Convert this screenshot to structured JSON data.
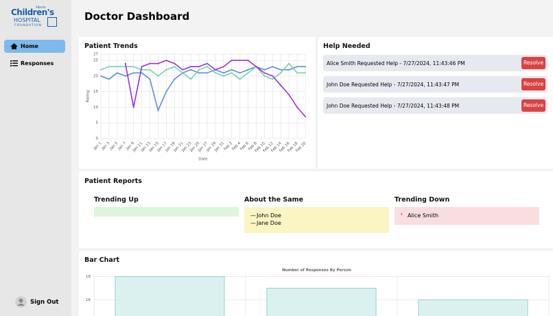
{
  "logo": {
    "small": "Alberta",
    "line1": "Children's",
    "line2": "HOSPITAL",
    "line3": "FOUNDATION"
  },
  "nav": [
    "Home",
    "Responses"
  ],
  "sign_out": "Sign Out",
  "header": {
    "title": "Doctor Dashboard"
  },
  "patient_trends": {
    "type": "line",
    "title": "Patient Trends",
    "xlabel": "Date",
    "ylabel": "Rating",
    "categories": [
      "Jan 1",
      "Jan 3",
      "Jan 5",
      "Jan 7",
      "Jan 9",
      "Jan 11",
      "Jan 13",
      "Jan 15",
      "Jan 17",
      "Jan 19",
      "Jan 21",
      "Jan 23",
      "Jan 25",
      "Jan 27",
      "Jan 29",
      "Jan 31",
      "Feb 2",
      "Feb 4",
      "Feb 6",
      "Feb 8",
      "Feb 10",
      "Feb 12",
      "Feb 14",
      "Feb 16",
      "Feb 18",
      "Feb 20"
    ],
    "series": [
      {
        "color": "#5b8fd6",
        "values": [
          20,
          19,
          21,
          20,
          21,
          21,
          19,
          9,
          15,
          19,
          21,
          22,
          21,
          21,
          22,
          21,
          22,
          21,
          22,
          23,
          22,
          23,
          22,
          22,
          23,
          23
        ]
      },
      {
        "color": "#6fd3b2",
        "values": [
          22,
          23,
          23,
          23,
          23,
          22,
          22,
          20,
          22,
          23,
          21,
          19,
          22,
          23,
          21,
          20,
          21,
          19,
          21,
          23,
          20,
          19,
          21,
          24,
          21,
          21
        ]
      },
      {
        "color": "#9a30d8",
        "values": [
          null,
          null,
          null,
          24,
          10,
          23,
          24,
          24,
          25,
          24,
          22,
          23,
          23,
          24,
          22,
          23,
          25,
          25,
          25,
          23,
          21,
          20,
          17,
          14,
          10,
          7
        ]
      }
    ],
    "ylim": [
      0,
      27
    ],
    "yticks": [
      0,
      5,
      10,
      15,
      20,
      25,
      27
    ],
    "grid": true
  },
  "help_needed": {
    "title": "Help Needed",
    "button": "Resolve",
    "items": [
      "Alice Smith Requested Help - 7/27/2024, 11:43:46 PM",
      "John Doe Requested Help - 7/27/2024, 11:43:47 PM",
      "John Doe Requested Help - 7/27/2024, 11:43:48 PM"
    ]
  },
  "patient_reports": {
    "title": "Patient Reports",
    "columns": [
      {
        "title": "Trending Up",
        "names": []
      },
      {
        "title": "About the Same",
        "names": [
          "John Doe",
          "Jane Doe"
        ]
      },
      {
        "title": "Trending Down",
        "names": [
          "Alice Smith"
        ]
      }
    ]
  },
  "bar_chart": {
    "type": "bar",
    "title": "Bar Chart",
    "subtitle": "Number of Responses By Person",
    "values": [
      18,
      17,
      16
    ],
    "color": "#dbf1f0",
    "ylim": [
      14.6,
      18.2
    ],
    "yticks": [
      16,
      18
    ],
    "grid": true
  }
}
